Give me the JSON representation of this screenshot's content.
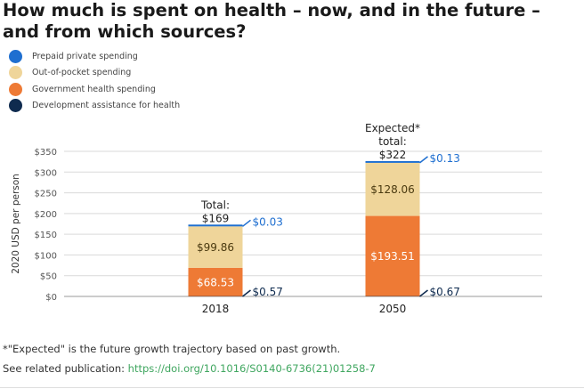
{
  "title": "How much is spent on health – now, and in the future – and from which sources?",
  "legend": [
    {
      "label": "Prepaid private spending",
      "color": "#1f6fd0"
    },
    {
      "label": "Out-of-pocket spending",
      "color": "#efd59a"
    },
    {
      "label": "Government health spending",
      "color": "#ee7a35"
    },
    {
      "label": "Development assistance for health",
      "color": "#0f2b4f"
    }
  ],
  "chart_data": {
    "type": "bar",
    "stacked": true,
    "categories": [
      "2018",
      "2050"
    ],
    "ylabel": "2020 USD per person",
    "ylim": [
      0,
      350
    ],
    "yticks": [
      0,
      50,
      100,
      150,
      200,
      250,
      300,
      350
    ],
    "ytick_labels": [
      "$0",
      "$50",
      "$100",
      "$150",
      "$200",
      "$250",
      "$300",
      "$350"
    ],
    "grid": true,
    "series": [
      {
        "name": "Development assistance for health",
        "values": [
          0.57,
          0.67
        ],
        "color": "#0f2b4f",
        "labels": [
          "$0.57",
          "$0.67"
        ]
      },
      {
        "name": "Government health spending",
        "values": [
          68.53,
          193.51
        ],
        "color": "#ee7a35",
        "labels": [
          "$68.53",
          "$193.51"
        ]
      },
      {
        "name": "Out-of-pocket spending",
        "values": [
          99.86,
          128.06
        ],
        "color": "#efd59a",
        "labels": [
          "$99.86",
          "$128.06"
        ]
      },
      {
        "name": "Prepaid private spending",
        "values": [
          0.03,
          0.13
        ],
        "color": "#1f6fd0",
        "labels": [
          "$0.03",
          "$0.13"
        ]
      }
    ],
    "totals": [
      {
        "category": "2018",
        "value": 169,
        "lines": [
          "Total:",
          "$169"
        ]
      },
      {
        "category": "2050",
        "value": 322,
        "lines": [
          "Expected*",
          "total:",
          "$322"
        ]
      }
    ]
  },
  "footnote": "*\"Expected\" is the future growth trajectory based on past growth.",
  "related": {
    "prefix": "See related publication: ",
    "link": "https://doi.org/10.1016/S0140-6736(21)01258-7"
  }
}
